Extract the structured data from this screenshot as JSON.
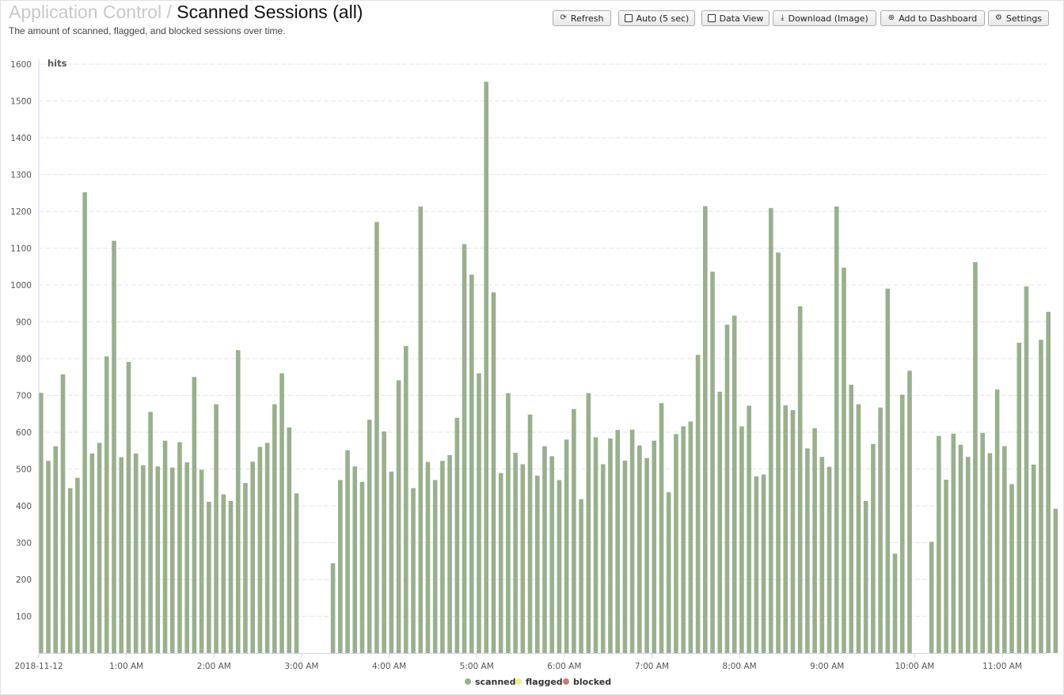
{
  "header": {
    "breadcrumb": "Application Control",
    "separator": "/",
    "title": "Scanned Sessions (all)",
    "subtitle": "The amount of scanned, flagged, and blocked sessions over time."
  },
  "toolbar": {
    "refresh": "Refresh",
    "auto": "Auto (5 sec)",
    "data_view": "Data View",
    "download": "Download (Image)",
    "add_dashboard": "Add to Dashboard",
    "settings": "Settings"
  },
  "colors": {
    "scanned": "#98b08c",
    "flagged": "#f3ee8a",
    "blocked": "#c87a7a",
    "axis": "#ccd6eb",
    "grid": "#e6e6e6"
  },
  "chart_data": {
    "type": "bar",
    "ylabel": "hits",
    "ylim": [
      0,
      1600
    ],
    "yticks": [
      100,
      200,
      300,
      400,
      500,
      600,
      700,
      800,
      900,
      1000,
      1100,
      1200,
      1300,
      1400,
      1500,
      1600
    ],
    "interval_minutes": 5,
    "xticks": [
      {
        "label": "2018-11-12",
        "minute": 0
      },
      {
        "label": "1:00 AM",
        "minute": 60
      },
      {
        "label": "2:00 AM",
        "minute": 120
      },
      {
        "label": "3:00 AM",
        "minute": 180
      },
      {
        "label": "4:00 AM",
        "minute": 240
      },
      {
        "label": "5:00 AM",
        "minute": 300
      },
      {
        "label": "6:00 AM",
        "minute": 360
      },
      {
        "label": "7:00 AM",
        "minute": 420
      },
      {
        "label": "8:00 AM",
        "minute": 480
      },
      {
        "label": "9:00 AM",
        "minute": 540
      },
      {
        "label": "10:00 AM",
        "minute": 600
      },
      {
        "label": "11:00 AM",
        "minute": 660
      }
    ],
    "legend": [
      "scanned",
      "flagged",
      "blocked"
    ],
    "series": [
      {
        "name": "scanned",
        "values": [
          707,
          522,
          562,
          757,
          448,
          476,
          1252,
          542,
          571,
          806,
          1120,
          532,
          791,
          542,
          510,
          655,
          507,
          577,
          504,
          573,
          518,
          750,
          498,
          411,
          676,
          431,
          413,
          823,
          462,
          520,
          560,
          571,
          676,
          760,
          613,
          434,
          0,
          0,
          0,
          0,
          244,
          470,
          551,
          507,
          465,
          634,
          1171,
          602,
          493,
          741,
          834,
          448,
          1213,
          519,
          470,
          522,
          538,
          639,
          1111,
          1028,
          760,
          1552,
          980,
          489,
          706,
          544,
          513,
          648,
          482,
          562,
          535,
          470,
          580,
          663,
          418,
          706,
          586,
          513,
          583,
          606,
          523,
          607,
          564,
          530,
          577,
          679,
          437,
          595,
          616,
          629,
          810,
          1214,
          1036,
          710,
          892,
          917,
          616,
          672,
          480,
          485,
          1209,
          1088,
          673,
          660,
          942,
          556,
          611,
          533,
          506,
          1213,
          1047,
          729,
          676,
          413,
          568,
          667,
          990,
          270,
          702,
          767,
          0,
          0,
          302,
          590,
          471,
          596,
          566,
          533,
          1062,
          598,
          543,
          716,
          562,
          459,
          843,
          996,
          512,
          851,
          927,
          392
        ]
      },
      {
        "name": "flagged",
        "values": []
      },
      {
        "name": "blocked",
        "values": []
      }
    ]
  }
}
